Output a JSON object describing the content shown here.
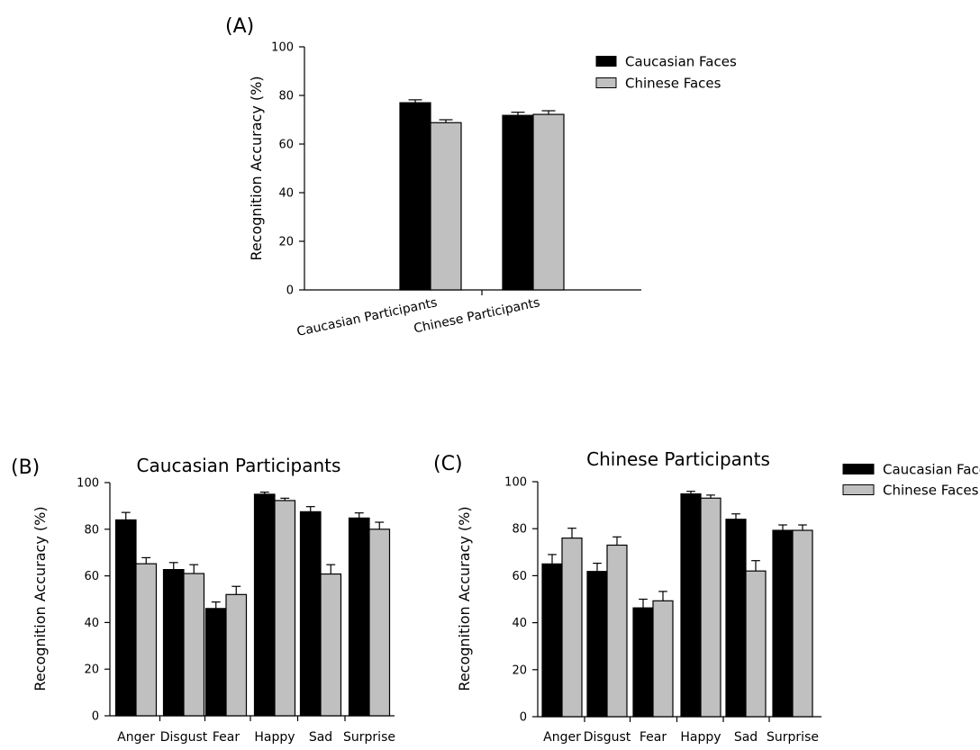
{
  "colors": {
    "caucasian_faces": "#000000",
    "chinese_faces": "#c0c0c0"
  },
  "chart_data": [
    {
      "type": "bar",
      "panel_label": "(A)",
      "title": "",
      "xlabel": "",
      "ylabel": "Recognition Accuracy (%)",
      "ylim": [
        0,
        100
      ],
      "yticks": [
        "0",
        "20",
        "40",
        "60",
        "80",
        "100"
      ],
      "grid": false,
      "legend": {
        "show": true,
        "position": "top-right"
      },
      "categories": [
        "Caucasian Participants",
        "Chinese Participants"
      ],
      "series": [
        {
          "name": "Caucasian Faces",
          "color": "#000000",
          "values": [
            77.0,
            71.8
          ],
          "errors": [
            1.2,
            1.3
          ]
        },
        {
          "name": "Chinese Faces",
          "color": "#c0c0c0",
          "values": [
            68.8,
            72.2
          ],
          "errors": [
            1.2,
            1.5
          ]
        }
      ]
    },
    {
      "type": "bar",
      "panel_label": "(B)",
      "title": "Caucasian Participants",
      "xlabel": "",
      "ylabel": "Recognition Accuracy (%)",
      "ylim": [
        0,
        100
      ],
      "yticks": [
        "0",
        "20",
        "40",
        "60",
        "80",
        "100"
      ],
      "grid": false,
      "legend": {
        "show": false,
        "position": ""
      },
      "categories": [
        "Anger",
        "Disgust",
        "Fear",
        "Happy",
        "Sad",
        "Surprise"
      ],
      "series": [
        {
          "name": "Caucasian Faces",
          "color": "#000000",
          "values": [
            84.0,
            62.7,
            46.0,
            95.0,
            87.5,
            84.8
          ],
          "errors": [
            3.2,
            3.0,
            2.8,
            0.9,
            2.2,
            2.2
          ]
        },
        {
          "name": "Chinese Faces",
          "color": "#c0c0c0",
          "values": [
            65.2,
            61.0,
            52.0,
            92.3,
            60.8,
            80.0
          ],
          "errors": [
            2.6,
            3.8,
            3.5,
            1.0,
            4.0,
            3.0
          ]
        }
      ]
    },
    {
      "type": "bar",
      "panel_label": "(C)",
      "title": "Chinese Participants",
      "xlabel": "",
      "ylabel": "Recognition Accuracy (%)",
      "ylim": [
        0,
        100
      ],
      "yticks": [
        "0",
        "20",
        "40",
        "60",
        "80",
        "100"
      ],
      "grid": false,
      "legend": {
        "show": true,
        "position": "top-right"
      },
      "categories": [
        "Anger",
        "Disgust",
        "Fear",
        "Happy",
        "Sad",
        "Surprise"
      ],
      "series": [
        {
          "name": "Caucasian Faces",
          "color": "#000000",
          "values": [
            65.0,
            61.8,
            46.3,
            94.8,
            84.0,
            79.3
          ],
          "errors": [
            4.0,
            3.5,
            3.7,
            1.1,
            2.3,
            2.3
          ]
        },
        {
          "name": "Chinese Faces",
          "color": "#c0c0c0",
          "values": [
            76.0,
            73.0,
            49.3,
            93.0,
            62.0,
            79.3
          ],
          "errors": [
            4.2,
            3.5,
            4.0,
            1.3,
            4.4,
            2.3
          ]
        }
      ]
    }
  ]
}
